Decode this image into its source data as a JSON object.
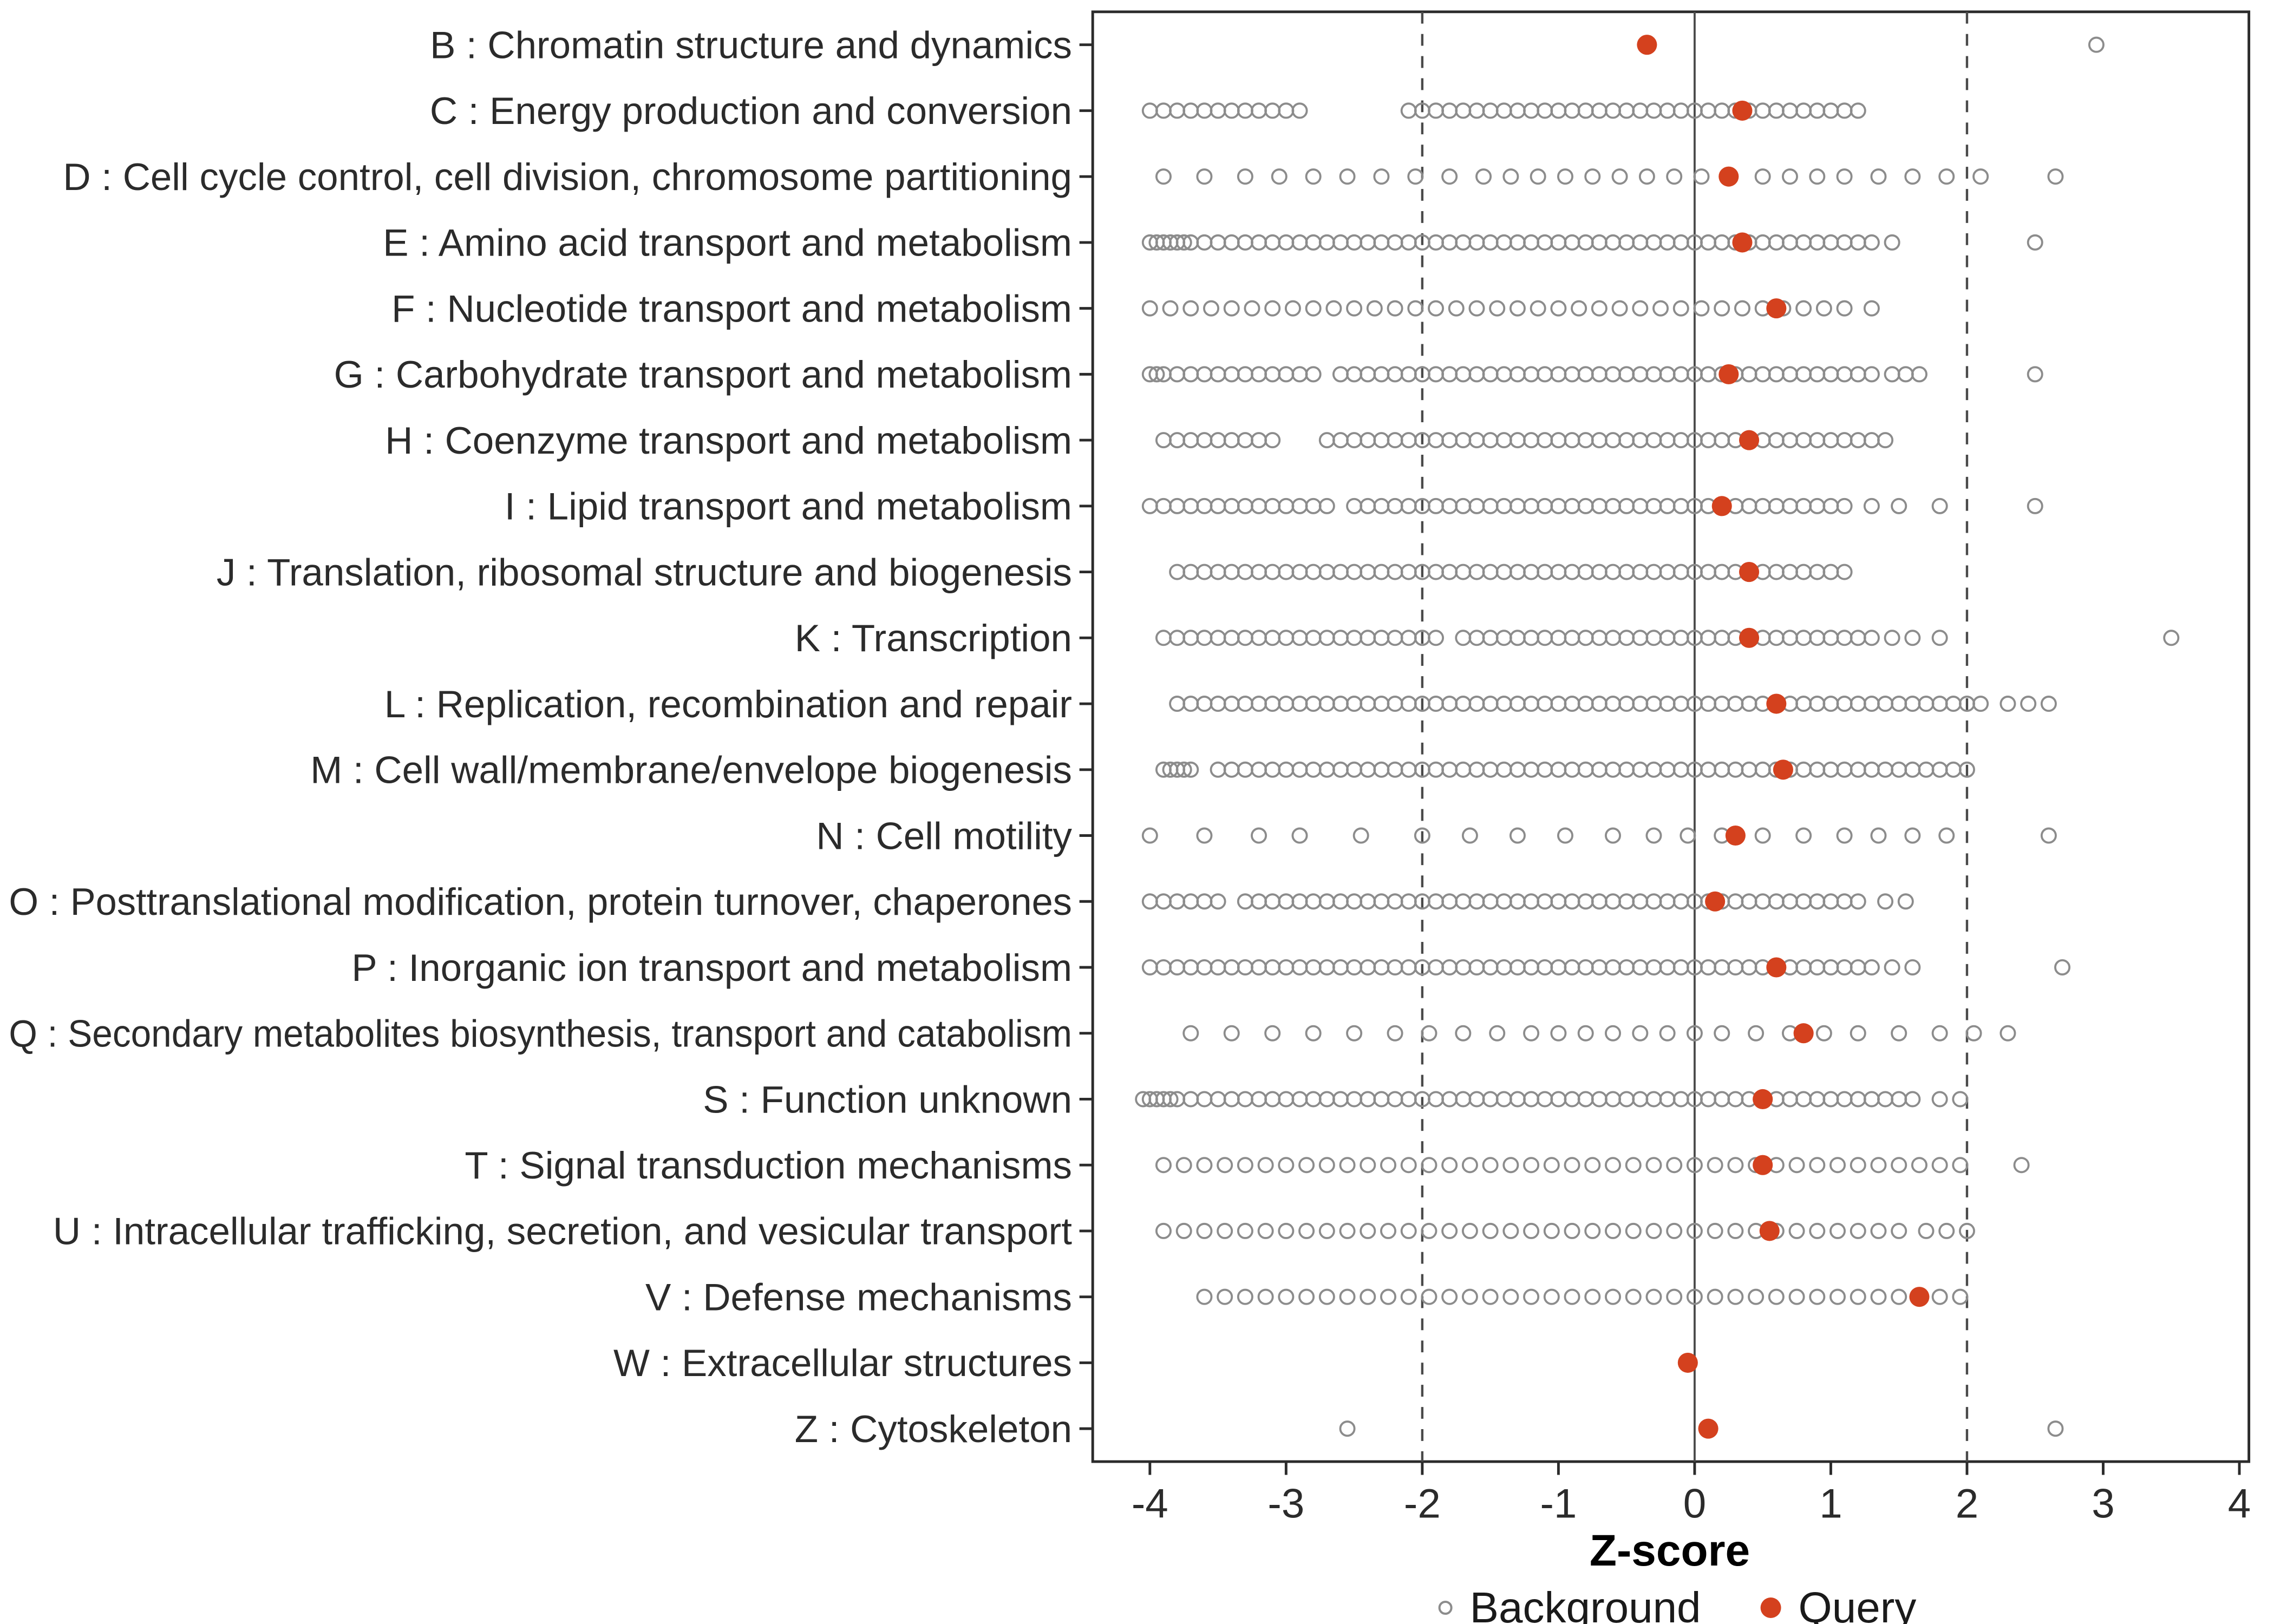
{
  "chart_data": {
    "type": "scatter",
    "title": "",
    "xlabel": "Z-score",
    "ylabel": "",
    "xlim": [
      -4.42,
      4.07
    ],
    "x_ticks": [
      -4,
      -3,
      -2,
      -1,
      0,
      1,
      2,
      3,
      4
    ],
    "reference_lines": {
      "solid": [
        0
      ],
      "dashed": [
        -2,
        2
      ]
    },
    "legend_position": "bottom",
    "series": [
      {
        "name": "Background",
        "marker": "open-circle"
      },
      {
        "name": "Query",
        "marker": "filled-circle"
      }
    ],
    "categories": [
      {
        "label": "B : Chromatin structure and dynamics",
        "query": -0.35,
        "background": [
          2.95
        ]
      },
      {
        "label": "C : Energy production and conversion",
        "query": 0.35,
        "background": [
          -4,
          -3.9,
          -3.8,
          -3.7,
          -3.6,
          -3.5,
          -3.4,
          -3.3,
          -3.2,
          -3.1,
          -3,
          -2.9,
          -2.1,
          -2,
          -1.9,
          -1.8,
          -1.7,
          -1.6,
          -1.5,
          -1.4,
          -1.3,
          -1.2,
          -1.1,
          -1,
          -0.9,
          -0.8,
          -0.7,
          -0.6,
          -0.5,
          -0.4,
          -0.3,
          -0.2,
          -0.1,
          0,
          0.1,
          0.2,
          0.3,
          0.4,
          0.5,
          0.6,
          0.7,
          0.8,
          0.9,
          1,
          1.1,
          1.2
        ]
      },
      {
        "label": "D : Cell cycle control, cell division, chromosome partitioning",
        "query": 0.25,
        "background": [
          -3.9,
          -3.6,
          -3.3,
          -3.05,
          -2.8,
          -2.55,
          -2.3,
          -2.05,
          -1.8,
          -1.55,
          -1.35,
          -1.15,
          -0.95,
          -0.75,
          -0.55,
          -0.35,
          -0.15,
          0.05,
          0.25,
          0.5,
          0.7,
          0.9,
          1.1,
          1.35,
          1.6,
          1.85,
          2.1,
          2.65
        ]
      },
      {
        "label": "E : Amino acid transport and metabolism",
        "query": 0.35,
        "background": [
          -4,
          -3.95,
          -3.9,
          -3.85,
          -3.8,
          -3.75,
          -3.7,
          -3.6,
          -3.5,
          -3.4,
          -3.3,
          -3.2,
          -3.1,
          -3,
          -2.9,
          -2.8,
          -2.7,
          -2.6,
          -2.5,
          -2.4,
          -2.3,
          -2.2,
          -2.1,
          -2,
          -1.9,
          -1.8,
          -1.7,
          -1.6,
          -1.5,
          -1.4,
          -1.3,
          -1.2,
          -1.1,
          -1,
          -0.9,
          -0.8,
          -0.7,
          -0.6,
          -0.5,
          -0.4,
          -0.3,
          -0.2,
          -0.1,
          0,
          0.1,
          0.2,
          0.3,
          0.4,
          0.5,
          0.6,
          0.7,
          0.8,
          0.9,
          1,
          1.1,
          1.2,
          1.3,
          1.45,
          2.5
        ]
      },
      {
        "label": "F : Nucleotide transport and metabolism",
        "query": 0.6,
        "background": [
          -4,
          -3.85,
          -3.7,
          -3.55,
          -3.4,
          -3.25,
          -3.1,
          -2.95,
          -2.8,
          -2.65,
          -2.5,
          -2.35,
          -2.2,
          -2.05,
          -1.9,
          -1.75,
          -1.6,
          -1.45,
          -1.3,
          -1.15,
          -1,
          -0.85,
          -0.7,
          -0.55,
          -0.4,
          -0.25,
          -0.1,
          0.05,
          0.2,
          0.35,
          0.5,
          0.65,
          0.8,
          0.95,
          1.1,
          1.3
        ]
      },
      {
        "label": "G : Carbohydrate transport and metabolism",
        "query": 0.25,
        "background": [
          -4,
          -3.95,
          -3.9,
          -3.8,
          -3.7,
          -3.6,
          -3.5,
          -3.4,
          -3.3,
          -3.2,
          -3.1,
          -3,
          -2.9,
          -2.8,
          -2.6,
          -2.5,
          -2.4,
          -2.3,
          -2.2,
          -2.1,
          -2,
          -1.9,
          -1.8,
          -1.7,
          -1.6,
          -1.5,
          -1.4,
          -1.3,
          -1.2,
          -1.1,
          -1,
          -0.9,
          -0.8,
          -0.7,
          -0.6,
          -0.5,
          -0.4,
          -0.3,
          -0.2,
          -0.1,
          0,
          0.1,
          0.2,
          0.3,
          0.4,
          0.5,
          0.6,
          0.7,
          0.8,
          0.9,
          1,
          1.1,
          1.2,
          1.3,
          1.45,
          1.55,
          1.65,
          2.5
        ]
      },
      {
        "label": "H : Coenzyme transport and metabolism",
        "query": 0.4,
        "background": [
          -3.9,
          -3.8,
          -3.7,
          -3.6,
          -3.5,
          -3.4,
          -3.3,
          -3.2,
          -3.1,
          -2.7,
          -2.6,
          -2.5,
          -2.4,
          -2.3,
          -2.2,
          -2.1,
          -2,
          -1.9,
          -1.8,
          -1.7,
          -1.6,
          -1.5,
          -1.4,
          -1.3,
          -1.2,
          -1.1,
          -1,
          -0.9,
          -0.8,
          -0.7,
          -0.6,
          -0.5,
          -0.4,
          -0.3,
          -0.2,
          -0.1,
          0,
          0.1,
          0.2,
          0.3,
          0.4,
          0.5,
          0.6,
          0.7,
          0.8,
          0.9,
          1,
          1.1,
          1.2,
          1.3,
          1.4
        ]
      },
      {
        "label": "I : Lipid transport and metabolism",
        "query": 0.2,
        "background": [
          -4,
          -3.9,
          -3.8,
          -3.7,
          -3.6,
          -3.5,
          -3.4,
          -3.3,
          -3.2,
          -3.1,
          -3,
          -2.9,
          -2.8,
          -2.7,
          -2.5,
          -2.4,
          -2.3,
          -2.2,
          -2.1,
          -2,
          -1.9,
          -1.8,
          -1.7,
          -1.6,
          -1.5,
          -1.4,
          -1.3,
          -1.2,
          -1.1,
          -1,
          -0.9,
          -0.8,
          -0.7,
          -0.6,
          -0.5,
          -0.4,
          -0.3,
          -0.2,
          -0.1,
          0,
          0.1,
          0.2,
          0.3,
          0.4,
          0.5,
          0.6,
          0.7,
          0.8,
          0.9,
          1,
          1.1,
          1.3,
          1.5,
          1.8,
          2.5
        ]
      },
      {
        "label": "J : Translation, ribosomal structure and biogenesis",
        "query": 0.4,
        "background": [
          -3.8,
          -3.7,
          -3.6,
          -3.5,
          -3.4,
          -3.3,
          -3.2,
          -3.1,
          -3,
          -2.9,
          -2.8,
          -2.7,
          -2.6,
          -2.5,
          -2.4,
          -2.3,
          -2.2,
          -2.1,
          -2,
          -1.9,
          -1.8,
          -1.7,
          -1.6,
          -1.5,
          -1.4,
          -1.3,
          -1.2,
          -1.1,
          -1,
          -0.9,
          -0.8,
          -0.7,
          -0.6,
          -0.5,
          -0.4,
          -0.3,
          -0.2,
          -0.1,
          0,
          0.1,
          0.2,
          0.3,
          0.4,
          0.5,
          0.6,
          0.7,
          0.8,
          0.9,
          1,
          1.1
        ]
      },
      {
        "label": "K : Transcription",
        "query": 0.4,
        "background": [
          -3.9,
          -3.8,
          -3.7,
          -3.6,
          -3.5,
          -3.4,
          -3.3,
          -3.2,
          -3.1,
          -3,
          -2.9,
          -2.8,
          -2.7,
          -2.6,
          -2.5,
          -2.4,
          -2.3,
          -2.2,
          -2.1,
          -2,
          -1.9,
          -1.7,
          -1.6,
          -1.5,
          -1.4,
          -1.3,
          -1.2,
          -1.1,
          -1,
          -0.9,
          -0.8,
          -0.7,
          -0.6,
          -0.5,
          -0.4,
          -0.3,
          -0.2,
          -0.1,
          0,
          0.1,
          0.2,
          0.3,
          0.4,
          0.5,
          0.6,
          0.7,
          0.8,
          0.9,
          1,
          1.1,
          1.2,
          1.3,
          1.45,
          1.6,
          1.8,
          3.5
        ]
      },
      {
        "label": "L : Replication, recombination and repair",
        "query": 0.6,
        "background": [
          -3.8,
          -3.7,
          -3.6,
          -3.5,
          -3.4,
          -3.3,
          -3.2,
          -3.1,
          -3,
          -2.9,
          -2.8,
          -2.7,
          -2.6,
          -2.5,
          -2.4,
          -2.3,
          -2.2,
          -2.1,
          -2,
          -1.9,
          -1.8,
          -1.7,
          -1.6,
          -1.5,
          -1.4,
          -1.3,
          -1.2,
          -1.1,
          -1,
          -0.9,
          -0.8,
          -0.7,
          -0.6,
          -0.5,
          -0.4,
          -0.3,
          -0.2,
          -0.1,
          0,
          0.1,
          0.2,
          0.3,
          0.4,
          0.5,
          0.6,
          0.7,
          0.8,
          0.9,
          1,
          1.1,
          1.2,
          1.3,
          1.4,
          1.5,
          1.6,
          1.7,
          1.8,
          1.9,
          2,
          2.1,
          2.3,
          2.45,
          2.6
        ]
      },
      {
        "label": "M : Cell wall/membrane/envelope biogenesis",
        "query": 0.65,
        "background": [
          -3.9,
          -3.85,
          -3.8,
          -3.75,
          -3.7,
          -3.5,
          -3.4,
          -3.3,
          -3.2,
          -3.1,
          -3,
          -2.9,
          -2.8,
          -2.7,
          -2.6,
          -2.5,
          -2.4,
          -2.3,
          -2.2,
          -2.1,
          -2,
          -1.9,
          -1.8,
          -1.7,
          -1.6,
          -1.5,
          -1.4,
          -1.3,
          -1.2,
          -1.1,
          -1,
          -0.9,
          -0.8,
          -0.7,
          -0.6,
          -0.5,
          -0.4,
          -0.3,
          -0.2,
          -0.1,
          0,
          0.1,
          0.2,
          0.3,
          0.4,
          0.5,
          0.6,
          0.7,
          0.8,
          0.9,
          1,
          1.1,
          1.2,
          1.3,
          1.4,
          1.5,
          1.6,
          1.7,
          1.8,
          1.9,
          2
        ]
      },
      {
        "label": "N : Cell motility",
        "query": 0.3,
        "background": [
          -4,
          -3.6,
          -3.2,
          -2.9,
          -2.45,
          -2,
          -1.65,
          -1.3,
          -0.95,
          -0.6,
          -0.3,
          -0.05,
          0.2,
          0.5,
          0.8,
          1.1,
          1.35,
          1.6,
          1.85,
          2.6
        ]
      },
      {
        "label": "O : Posttranslational modification, protein turnover, chaperones",
        "query": 0.15,
        "background": [
          -4,
          -3.9,
          -3.8,
          -3.7,
          -3.6,
          -3.5,
          -3.3,
          -3.2,
          -3.1,
          -3,
          -2.9,
          -2.8,
          -2.7,
          -2.6,
          -2.5,
          -2.4,
          -2.3,
          -2.2,
          -2.1,
          -2,
          -1.9,
          -1.8,
          -1.7,
          -1.6,
          -1.5,
          -1.4,
          -1.3,
          -1.2,
          -1.1,
          -1,
          -0.9,
          -0.8,
          -0.7,
          -0.6,
          -0.5,
          -0.4,
          -0.3,
          -0.2,
          -0.1,
          0,
          0.1,
          0.2,
          0.3,
          0.4,
          0.5,
          0.6,
          0.7,
          0.8,
          0.9,
          1,
          1.1,
          1.2,
          1.4,
          1.55
        ]
      },
      {
        "label": "P : Inorganic ion transport and metabolism",
        "query": 0.6,
        "background": [
          -4,
          -3.9,
          -3.8,
          -3.7,
          -3.6,
          -3.5,
          -3.4,
          -3.3,
          -3.2,
          -3.1,
          -3,
          -2.9,
          -2.8,
          -2.7,
          -2.6,
          -2.5,
          -2.4,
          -2.3,
          -2.2,
          -2.1,
          -2,
          -1.9,
          -1.8,
          -1.7,
          -1.6,
          -1.5,
          -1.4,
          -1.3,
          -1.2,
          -1.1,
          -1,
          -0.9,
          -0.8,
          -0.7,
          -0.6,
          -0.5,
          -0.4,
          -0.3,
          -0.2,
          -0.1,
          0,
          0.1,
          0.2,
          0.3,
          0.4,
          0.5,
          0.6,
          0.7,
          0.8,
          0.9,
          1,
          1.1,
          1.2,
          1.3,
          1.45,
          1.6,
          2.7
        ]
      },
      {
        "label": "Q : Secondary metabolites biosynthesis, transport and catabolism",
        "query": 0.8,
        "background": [
          -3.7,
          -3.4,
          -3.1,
          -2.8,
          -2.5,
          -2.2,
          -1.95,
          -1.7,
          -1.45,
          -1.2,
          -1,
          -0.8,
          -0.6,
          -0.4,
          -0.2,
          0,
          0.2,
          0.45,
          0.7,
          0.95,
          1.2,
          1.5,
          1.8,
          2.05,
          2.3
        ]
      },
      {
        "label": "S : Function unknown",
        "query": 0.5,
        "background": [
          -4.05,
          -4,
          -3.95,
          -3.9,
          -3.85,
          -3.8,
          -3.7,
          -3.6,
          -3.5,
          -3.4,
          -3.3,
          -3.2,
          -3.1,
          -3,
          -2.9,
          -2.8,
          -2.7,
          -2.6,
          -2.5,
          -2.4,
          -2.3,
          -2.2,
          -2.1,
          -2,
          -1.9,
          -1.8,
          -1.7,
          -1.6,
          -1.5,
          -1.4,
          -1.3,
          -1.2,
          -1.1,
          -1,
          -0.9,
          -0.8,
          -0.7,
          -0.6,
          -0.5,
          -0.4,
          -0.3,
          -0.2,
          -0.1,
          0,
          0.1,
          0.2,
          0.3,
          0.4,
          0.5,
          0.6,
          0.7,
          0.8,
          0.9,
          1,
          1.1,
          1.2,
          1.3,
          1.4,
          1.5,
          1.6,
          1.8,
          1.95
        ]
      },
      {
        "label": "T : Signal transduction mechanisms",
        "query": 0.5,
        "background": [
          -3.9,
          -3.75,
          -3.6,
          -3.45,
          -3.3,
          -3.15,
          -3,
          -2.85,
          -2.7,
          -2.55,
          -2.4,
          -2.25,
          -2.1,
          -1.95,
          -1.8,
          -1.65,
          -1.5,
          -1.35,
          -1.2,
          -1.05,
          -0.9,
          -0.75,
          -0.6,
          -0.45,
          -0.3,
          -0.15,
          0,
          0.15,
          0.3,
          0.45,
          0.6,
          0.75,
          0.9,
          1.05,
          1.2,
          1.35,
          1.5,
          1.65,
          1.8,
          1.95,
          2.4
        ]
      },
      {
        "label": "U : Intracellular trafficking, secretion, and vesicular transport",
        "query": 0.55,
        "background": [
          -3.9,
          -3.75,
          -3.6,
          -3.45,
          -3.3,
          -3.15,
          -3,
          -2.85,
          -2.7,
          -2.55,
          -2.4,
          -2.25,
          -2.1,
          -1.95,
          -1.8,
          -1.65,
          -1.5,
          -1.35,
          -1.2,
          -1.05,
          -0.9,
          -0.75,
          -0.6,
          -0.45,
          -0.3,
          -0.15,
          0,
          0.15,
          0.3,
          0.45,
          0.6,
          0.75,
          0.9,
          1.05,
          1.2,
          1.35,
          1.5,
          1.7,
          1.85,
          2
        ]
      },
      {
        "label": "V : Defense mechanisms",
        "query": 1.65,
        "background": [
          -3.6,
          -3.45,
          -3.3,
          -3.15,
          -3,
          -2.85,
          -2.7,
          -2.55,
          -2.4,
          -2.25,
          -2.1,
          -1.95,
          -1.8,
          -1.65,
          -1.5,
          -1.35,
          -1.2,
          -1.05,
          -0.9,
          -0.75,
          -0.6,
          -0.45,
          -0.3,
          -0.15,
          0,
          0.15,
          0.3,
          0.45,
          0.6,
          0.75,
          0.9,
          1.05,
          1.2,
          1.35,
          1.5,
          1.65,
          1.8,
          1.95
        ]
      },
      {
        "label": "W : Extracellular structures",
        "query": -0.05,
        "background": []
      },
      {
        "label": "Z : Cytoskeleton",
        "query": 0.1,
        "background": [
          -2.55,
          2.65
        ]
      }
    ]
  },
  "legend": {
    "background_label": "Background",
    "query_label": "Query"
  },
  "colors": {
    "query": "#D4411E",
    "background": "#8C8C8C",
    "panel_border": "#2B2B2B",
    "reference_line": "#4A4A4A",
    "text": "#2B2B2B"
  }
}
